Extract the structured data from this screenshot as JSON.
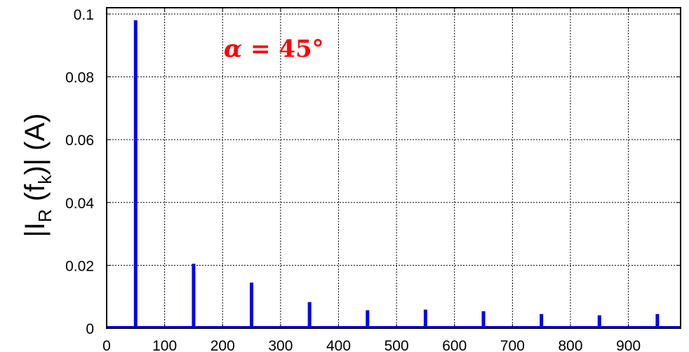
{
  "chart_data": {
    "type": "bar",
    "x": [
      50,
      150,
      250,
      350,
      450,
      550,
      650,
      750,
      850,
      950
    ],
    "series": [
      {
        "values": [
          0.098,
          0.0205,
          0.0145,
          0.0083,
          0.0057,
          0.0059,
          0.0054,
          0.0045,
          0.0041,
          0.0045
        ]
      }
    ],
    "xlim": [
      0,
      990
    ],
    "ylim": [
      0,
      0.102
    ],
    "xticks": [
      0,
      100,
      200,
      300,
      400,
      500,
      600,
      700,
      800,
      900
    ],
    "xtick_labels": [
      "0",
      "100",
      "200",
      "300",
      "400",
      "500",
      "600",
      "700",
      "800",
      "900"
    ],
    "yticks": [
      0,
      0.02,
      0.04,
      0.06,
      0.08,
      0.1
    ],
    "ytick_labels": [
      "0",
      "0.02",
      "0.04",
      "0.06",
      "0.08",
      "0.1"
    ],
    "ylabel": {
      "pre": "|I",
      "sub_r": "R",
      "mid": " (f",
      "sub_k": "k",
      "post": ")| (A)"
    },
    "annotation": {
      "alpha": "α",
      "rest": " = 45°"
    },
    "grid": true,
    "grid_style": "dotted",
    "bar_color": "#0000ff"
  }
}
